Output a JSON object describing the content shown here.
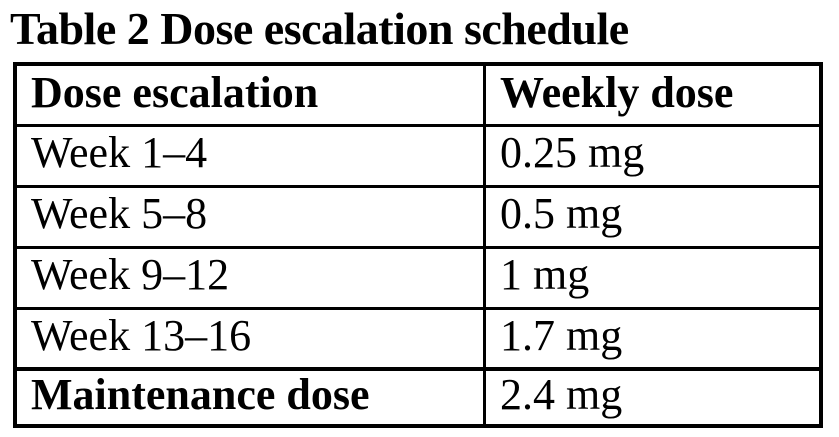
{
  "title": "Table 2 Dose escalation schedule",
  "table": {
    "headers": [
      "Dose escalation",
      "Weekly dose"
    ],
    "rows": [
      {
        "label": "Week 1–4",
        "value": "0.25 mg"
      },
      {
        "label": "Week 5–8",
        "value": "0.5 mg"
      },
      {
        "label": "Week 9–12",
        "value": "1 mg"
      },
      {
        "label": "Week 13–16",
        "value": "1.7 mg"
      },
      {
        "label": "Maintenance dose",
        "value": "2.4 mg"
      }
    ]
  },
  "colors": {
    "text": "#000000",
    "border": "#000000",
    "background": "#ffffff"
  },
  "chart_data": {
    "type": "table",
    "title": "Table 2 Dose escalation schedule",
    "columns": [
      "Dose escalation",
      "Weekly dose"
    ],
    "rows": [
      [
        "Week 1–4",
        "0.25 mg"
      ],
      [
        "Week 5–8",
        "0.5 mg"
      ],
      [
        "Week 9–12",
        "1 mg"
      ],
      [
        "Week 13–16",
        "1.7 mg"
      ],
      [
        "Maintenance dose",
        "2.4 mg"
      ]
    ]
  }
}
